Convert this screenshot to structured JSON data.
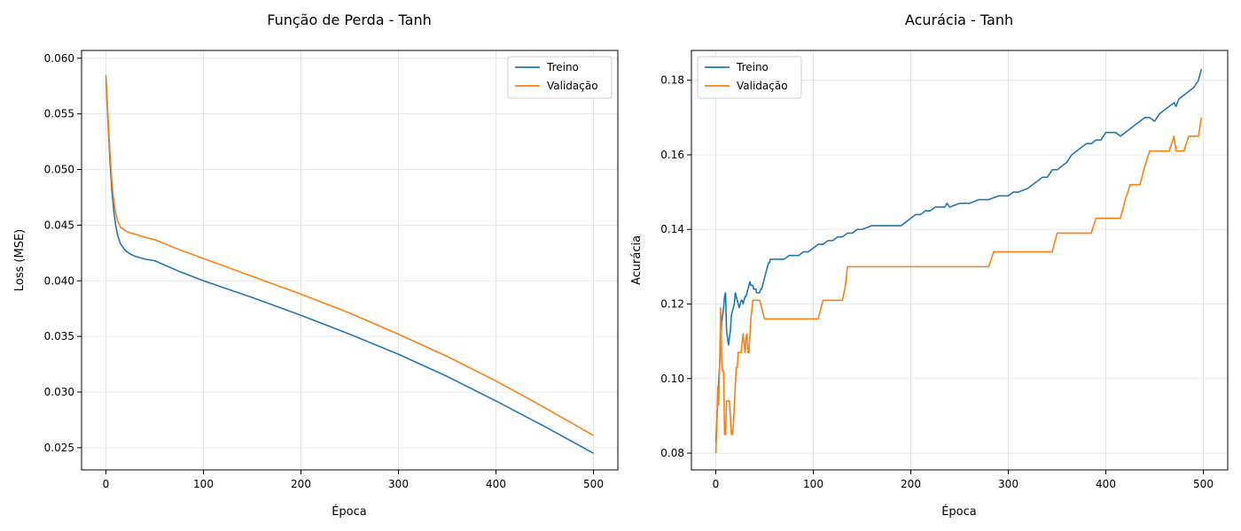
{
  "chart_data": [
    {
      "type": "line",
      "title": "Função de Perda - Tanh",
      "xlabel": "Época",
      "ylabel": "Loss (MSE)",
      "xlim": [
        -25,
        525
      ],
      "ylim": [
        0.023,
        0.0607
      ],
      "xticks": [
        0,
        100,
        200,
        300,
        400,
        500
      ],
      "xtick_labels": [
        "0",
        "100",
        "200",
        "300",
        "400",
        "500"
      ],
      "yticks": [
        0.025,
        0.03,
        0.035,
        0.04,
        0.045,
        0.05,
        0.055,
        0.06
      ],
      "ytick_labels": [
        "0.025",
        "0.030",
        "0.035",
        "0.040",
        "0.045",
        "0.050",
        "0.055",
        "0.060"
      ],
      "grid": true,
      "legend_position": "upper right",
      "series": [
        {
          "name": "Treino",
          "color": "#1f77b4",
          "x": [
            0,
            2,
            4,
            6,
            8,
            10,
            12,
            15,
            20,
            25,
            30,
            40,
            50,
            75,
            100,
            150,
            200,
            250,
            300,
            350,
            400,
            450,
            500
          ],
          "y": [
            0.0582,
            0.0545,
            0.051,
            0.0482,
            0.0463,
            0.045,
            0.0441,
            0.0433,
            0.0427,
            0.0424,
            0.0422,
            0.04195,
            0.0418,
            0.04085,
            0.04,
            0.0385,
            0.0369,
            0.0352,
            0.0334,
            0.0314,
            0.0292,
            0.0269,
            0.0245
          ]
        },
        {
          "name": "Validação",
          "color": "#ff7f0e",
          "x": [
            0,
            2,
            4,
            6,
            8,
            10,
            12,
            15,
            20,
            25,
            30,
            40,
            50,
            75,
            100,
            150,
            200,
            250,
            300,
            350,
            400,
            450,
            500
          ],
          "y": [
            0.0585,
            0.055,
            0.0517,
            0.049,
            0.0472,
            0.0461,
            0.0454,
            0.0448,
            0.0445,
            0.0443,
            0.0442,
            0.0439,
            0.0437,
            0.0428,
            0.042,
            0.0404,
            0.0388,
            0.0371,
            0.0352,
            0.0332,
            0.031,
            0.0286,
            0.0261
          ]
        }
      ]
    },
    {
      "type": "line",
      "title": "Acurácia - Tanh",
      "xlabel": "Época",
      "ylabel": "Acurácia",
      "xlim": [
        -25,
        525
      ],
      "ylim": [
        0.0755,
        0.188
      ],
      "xticks": [
        0,
        100,
        200,
        300,
        400,
        500
      ],
      "xtick_labels": [
        "0",
        "100",
        "200",
        "300",
        "400",
        "500"
      ],
      "yticks": [
        0.08,
        0.1,
        0.12,
        0.14,
        0.16,
        0.18
      ],
      "ytick_labels": [
        "0.08",
        "0.10",
        "0.12",
        "0.14",
        "0.16",
        "0.18"
      ],
      "grid": true,
      "legend_position": "upper left",
      "series": [
        {
          "name": "Treino",
          "color": "#1f77b4",
          "x": [
            0,
            1,
            2,
            3,
            4,
            5,
            6,
            7,
            8,
            9,
            10,
            11,
            12,
            13,
            14,
            15,
            16,
            17,
            18,
            19,
            20,
            21,
            22,
            23,
            24,
            25,
            26,
            27,
            28,
            29,
            30,
            31,
            32,
            33,
            34,
            35,
            36,
            37,
            38,
            39,
            40,
            41,
            42,
            43,
            44,
            45,
            46,
            47,
            48,
            49,
            50,
            51,
            52,
            53,
            54,
            55,
            56,
            58,
            60,
            65,
            70,
            75,
            80,
            85,
            90,
            95,
            100,
            105,
            110,
            115,
            120,
            125,
            130,
            135,
            140,
            145,
            150,
            160,
            170,
            180,
            190,
            195,
            200,
            205,
            210,
            215,
            220,
            225,
            230,
            235,
            237,
            240,
            250,
            260,
            270,
            275,
            280,
            290,
            300,
            305,
            310,
            320,
            325,
            330,
            335,
            340,
            345,
            350,
            355,
            360,
            365,
            370,
            375,
            380,
            385,
            390,
            395,
            400,
            405,
            410,
            415,
            420,
            425,
            430,
            435,
            440,
            445,
            450,
            455,
            460,
            465,
            470,
            472,
            475,
            480,
            485,
            490,
            495,
            498
          ],
          "y": [
            0.083,
            0.088,
            0.094,
            0.099,
            0.104,
            0.109,
            0.115,
            0.117,
            0.119,
            0.122,
            0.123,
            0.113,
            0.111,
            0.109,
            0.111,
            0.113,
            0.117,
            0.118,
            0.119,
            0.12,
            0.123,
            0.122,
            0.121,
            0.12,
            0.119,
            0.12,
            0.121,
            0.121,
            0.12,
            0.121,
            0.122,
            0.122,
            0.123,
            0.124,
            0.125,
            0.126,
            0.125,
            0.125,
            0.125,
            0.124,
            0.124,
            0.124,
            0.123,
            0.123,
            0.123,
            0.123,
            0.124,
            0.124,
            0.125,
            0.126,
            0.127,
            0.128,
            0.129,
            0.13,
            0.131,
            0.131,
            0.132,
            0.132,
            0.132,
            0.132,
            0.132,
            0.133,
            0.133,
            0.133,
            0.134,
            0.134,
            0.135,
            0.136,
            0.136,
            0.137,
            0.137,
            0.138,
            0.138,
            0.139,
            0.139,
            0.14,
            0.14,
            0.141,
            0.141,
            0.141,
            0.141,
            0.142,
            0.143,
            0.144,
            0.144,
            0.145,
            0.145,
            0.146,
            0.146,
            0.146,
            0.147,
            0.146,
            0.147,
            0.147,
            0.148,
            0.148,
            0.148,
            0.149,
            0.149,
            0.15,
            0.15,
            0.151,
            0.152,
            0.153,
            0.154,
            0.154,
            0.156,
            0.156,
            0.157,
            0.158,
            0.16,
            0.161,
            0.162,
            0.163,
            0.163,
            0.164,
            0.164,
            0.166,
            0.166,
            0.166,
            0.165,
            0.166,
            0.167,
            0.168,
            0.169,
            0.17,
            0.17,
            0.169,
            0.171,
            0.172,
            0.173,
            0.174,
            0.173,
            0.175,
            0.176,
            0.177,
            0.178,
            0.18,
            0.183
          ]
        },
        {
          "name": "Validação",
          "color": "#ff7f0e",
          "x": [
            0,
            1,
            2,
            3,
            4,
            5,
            6,
            7,
            8,
            9,
            10,
            11,
            12,
            14,
            16,
            17,
            18,
            20,
            21,
            22,
            23,
            24,
            26,
            28,
            30,
            31,
            32,
            33,
            34,
            36,
            38,
            40,
            45,
            50,
            55,
            60,
            70,
            80,
            90,
            100,
            105,
            110,
            120,
            130,
            133,
            135,
            140,
            150,
            200,
            250,
            280,
            285,
            300,
            320,
            340,
            345,
            350,
            370,
            385,
            390,
            400,
            410,
            415,
            420,
            425,
            430,
            435,
            440,
            445,
            450,
            460,
            465,
            470,
            472,
            475,
            480,
            485,
            490,
            495,
            498
          ],
          "y": [
            0.08,
            0.087,
            0.098,
            0.093,
            0.104,
            0.119,
            0.105,
            0.102,
            0.102,
            0.085,
            0.085,
            0.094,
            0.094,
            0.094,
            0.085,
            0.085,
            0.087,
            0.098,
            0.103,
            0.103,
            0.107,
            0.107,
            0.107,
            0.112,
            0.107,
            0.111,
            0.112,
            0.107,
            0.107,
            0.116,
            0.121,
            0.121,
            0.121,
            0.116,
            0.116,
            0.116,
            0.116,
            0.116,
            0.116,
            0.116,
            0.116,
            0.121,
            0.121,
            0.121,
            0.125,
            0.13,
            0.13,
            0.13,
            0.13,
            0.13,
            0.13,
            0.134,
            0.134,
            0.134,
            0.134,
            0.134,
            0.139,
            0.139,
            0.139,
            0.143,
            0.143,
            0.143,
            0.143,
            0.148,
            0.152,
            0.152,
            0.152,
            0.157,
            0.161,
            0.161,
            0.161,
            0.161,
            0.165,
            0.161,
            0.161,
            0.161,
            0.165,
            0.165,
            0.165,
            0.17
          ]
        }
      ]
    }
  ]
}
